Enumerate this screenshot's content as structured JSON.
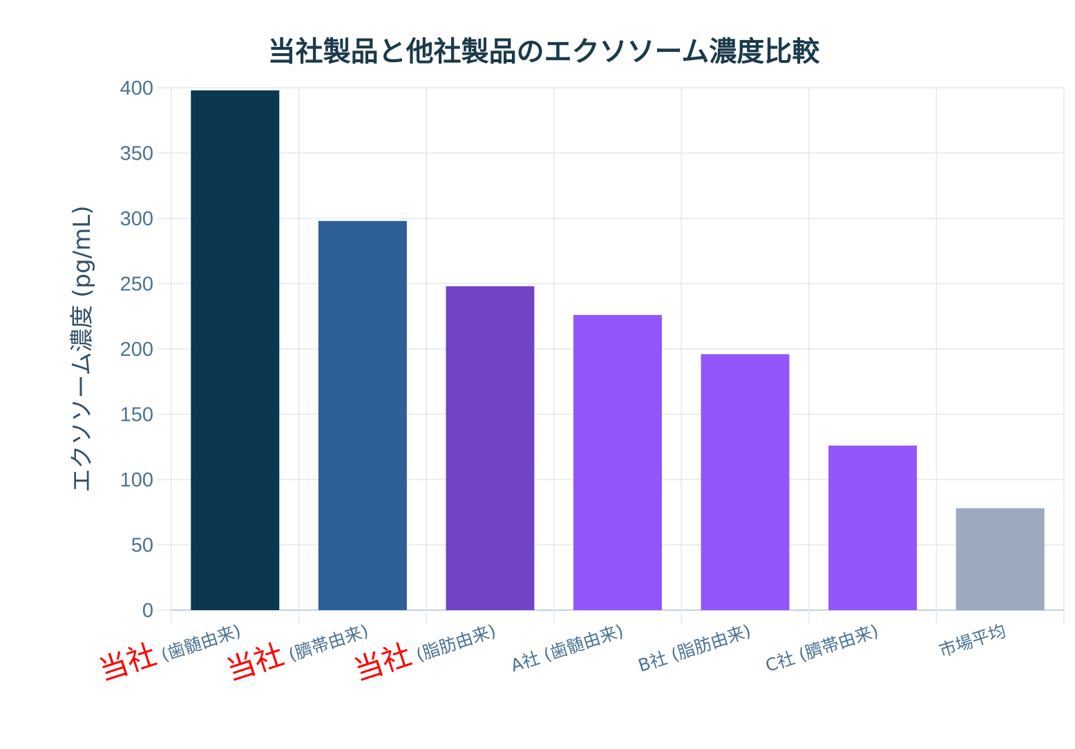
{
  "chart_data": {
    "type": "bar",
    "title": "当社製品と他社製品のエクソソーム濃度比較",
    "ylabel": "エクソソーム濃度 (pg/mL)",
    "xlabel": "",
    "ylim": [
      0,
      400
    ],
    "yticks": [
      "0",
      "50",
      "100",
      "150",
      "200",
      "250",
      "300",
      "350",
      "400"
    ],
    "grid": true,
    "categories": [
      {
        "prefix": "当社",
        "label": " (歯髄由来)"
      },
      {
        "prefix": "当社",
        "label": " (臍帯由来)"
      },
      {
        "prefix": "当社",
        "label": " (脂肪由来)"
      },
      {
        "prefix": "",
        "label": "A社 (歯髄由来)"
      },
      {
        "prefix": "",
        "label": "B社 (脂肪由来)"
      },
      {
        "prefix": "",
        "label": "C社 (臍帯由来)"
      },
      {
        "prefix": "",
        "label": "市場平均"
      }
    ],
    "values": [
      398,
      298,
      248,
      226,
      196,
      126,
      78
    ],
    "colors": [
      "#0b3751",
      "#2f5f97",
      "#7044c4",
      "#9356fb",
      "#9356fb",
      "#9356fb",
      "#9baabf"
    ],
    "prefix_color": "#ff0000"
  }
}
